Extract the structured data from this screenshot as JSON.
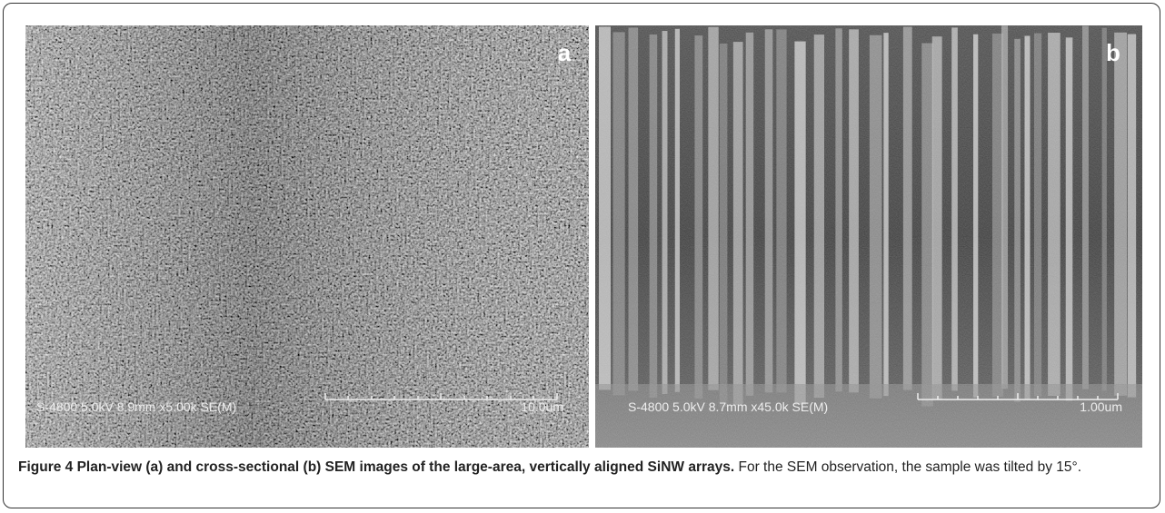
{
  "figure": {
    "panels": [
      {
        "label": "a",
        "info": "S-4800 5.0kV 8.9mm x5.00k SE(M)",
        "scale": "10.0um"
      },
      {
        "label": "b",
        "info": "S-4800 5.0kV 8.7mm x45.0k SE(M)",
        "scale": "1.00um"
      }
    ],
    "caption": {
      "title": "Figure 4 Plan-view (a) and cross-sectional (b) SEM images of the large-area, vertically aligned SiNW arrays.",
      "text": "For the SEM observation, the sample was tilted by 15°."
    }
  }
}
